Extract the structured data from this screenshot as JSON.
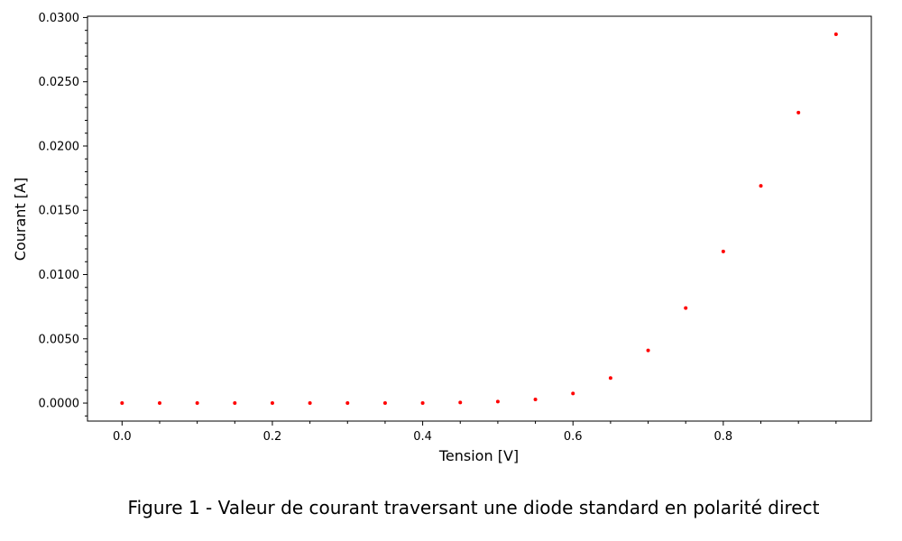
{
  "chart_data": {
    "type": "scatter",
    "xlabel": "Tension [V]",
    "ylabel": "Courant [A]",
    "xlim": [
      -0.046,
      0.997
    ],
    "ylim": [
      -0.0014,
      0.0301
    ],
    "x_ticks": [
      "0.0",
      "0.2",
      "0.4",
      "0.6",
      "0.8"
    ],
    "x_tick_values": [
      0.0,
      0.2,
      0.4,
      0.6,
      0.8
    ],
    "y_ticks": [
      "0.0000",
      "0.0050",
      "0.0100",
      "0.0150",
      "0.0200",
      "0.0250",
      "0.0300"
    ],
    "y_tick_values": [
      0.0,
      0.005,
      0.01,
      0.015,
      0.02,
      0.025,
      0.03
    ],
    "grid": false,
    "marker_color": "#ff0000",
    "x": [
      0.0,
      0.05,
      0.1,
      0.15,
      0.2,
      0.25,
      0.3,
      0.35,
      0.4,
      0.45,
      0.5,
      0.55,
      0.6,
      0.65,
      0.7,
      0.75,
      0.8,
      0.85,
      0.9,
      0.95
    ],
    "y": [
      0.0,
      0.0,
      0.0,
      0.0,
      0.0,
      0.0,
      0.0,
      0.0,
      0.0,
      5e-05,
      0.00012,
      0.00028,
      0.00075,
      0.00195,
      0.0041,
      0.0074,
      0.0118,
      0.0169,
      0.0226,
      0.0287
    ]
  },
  "caption": "Figure 1 - Valeur de courant traversant une diode standard en polarité direct"
}
